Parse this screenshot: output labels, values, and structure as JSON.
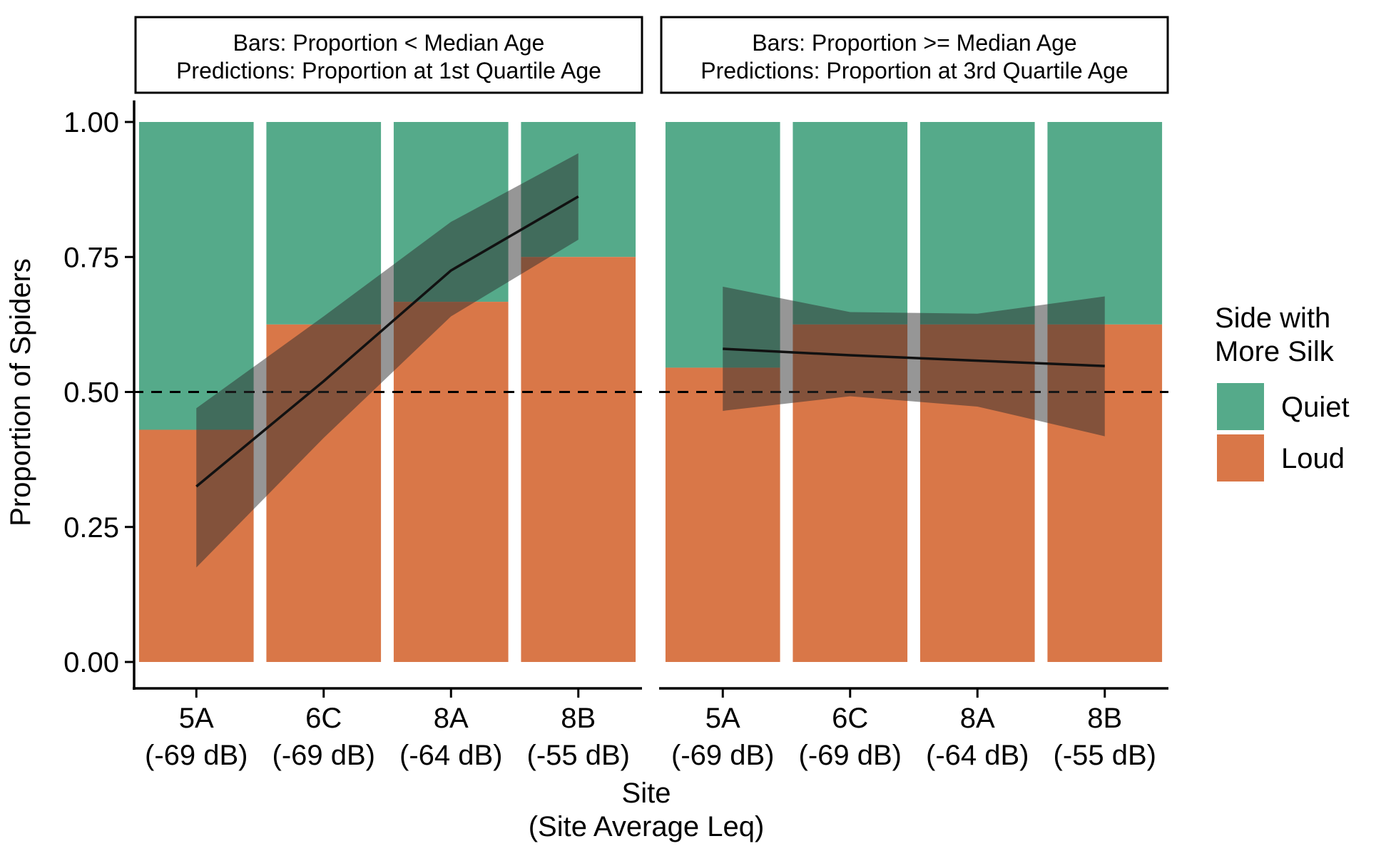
{
  "chart_data": {
    "type": "bar",
    "subtype": "stacked-proportion with model prediction line and confidence ribbon",
    "ylabel": "Proportion of Spiders",
    "xlabel_line1": "Site",
    "xlabel_line2": "(Site Average Leq)",
    "ylim": [
      0,
      1
    ],
    "y_ticks": [
      "0.00",
      "0.25",
      "0.50",
      "0.75",
      "1.00"
    ],
    "y_tick_values": [
      0,
      0.25,
      0.5,
      0.75,
      1.0
    ],
    "reference_line": 0.5,
    "categories": [
      {
        "site": "5A",
        "leq": "(-69 dB)"
      },
      {
        "site": "6C",
        "leq": "(-69 dB)"
      },
      {
        "site": "8A",
        "leq": "(-64 dB)"
      },
      {
        "site": "8B",
        "leq": "(-55 dB)"
      }
    ],
    "legend": {
      "title_line1": "Side with",
      "title_line2": "More Silk",
      "items": [
        {
          "label": "Quiet",
          "color": "#55aa8a"
        },
        {
          "label": "Loud",
          "color": "#d97748"
        }
      ]
    },
    "panels": [
      {
        "strip_line1": "Bars: Proportion < Median Age",
        "strip_line2": "Predictions: Proportion at 1st Quartile Age",
        "loud_proportion": [
          0.43,
          0.625,
          0.667,
          0.75
        ],
        "prediction": [
          0.325,
          0.52,
          0.725,
          0.862
        ],
        "ci_lower": [
          0.175,
          0.415,
          0.64,
          0.782
        ],
        "ci_upper": [
          0.47,
          0.64,
          0.815,
          0.942
        ]
      },
      {
        "strip_line1": "Bars: Proportion >= Median Age",
        "strip_line2": "Predictions: Proportion at 3rd Quartile Age",
        "loud_proportion": [
          0.545,
          0.625,
          0.625,
          0.625
        ],
        "prediction": [
          0.58,
          0.568,
          0.558,
          0.548
        ],
        "ci_lower": [
          0.465,
          0.492,
          0.473,
          0.418
        ],
        "ci_upper": [
          0.695,
          0.648,
          0.645,
          0.677
        ]
      }
    ]
  }
}
